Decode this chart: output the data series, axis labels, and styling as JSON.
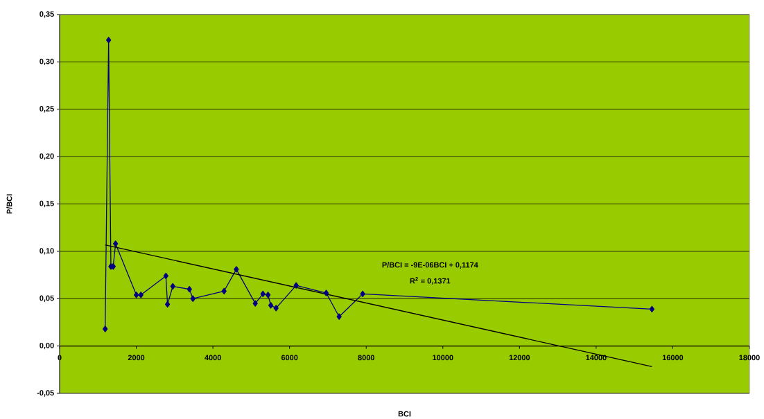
{
  "chart_data": {
    "type": "line",
    "xlabel": "BCI",
    "ylabel": "P/BCI",
    "annotations": [
      "P/BCI = -9E-06BCI + 0,1174",
      "R$^{2}$ = 0,1371"
    ],
    "series": [
      {
        "color": "#000080",
        "marker": "diamond",
        "x": [
          1188,
          1278,
          1338,
          1398,
          1459,
          2002,
          2121,
          2773,
          2815,
          2953,
          3387,
          3478,
          4291,
          4611,
          5105,
          5304,
          5438,
          5510,
          5648,
          6172,
          6956,
          7293,
          7908,
          15456
        ],
        "values": [
          0.018,
          0.323,
          0.084,
          0.084,
          0.108,
          0.054,
          0.054,
          0.074,
          0.044,
          0.063,
          0.06,
          0.05,
          0.058,
          0.081,
          0.045,
          0.055,
          0.054,
          0.043,
          0.04,
          0.064,
          0.056,
          0.031,
          0.055,
          0.039
        ]
      },
      {
        "color": "#000000",
        "marker": "none",
        "x": [
          1188,
          15456
        ],
        "values": [
          0.1067,
          -0.0217
        ]
      }
    ],
    "xlim": [
      0,
      18000
    ],
    "ylim": [
      -0.05,
      0.35
    ],
    "xticks": [
      0,
      2000,
      4000,
      6000,
      8000,
      10000,
      12000,
      14000,
      16000,
      18000
    ],
    "yticks": [
      {
        "value": -0.05,
        "label": "-0,05"
      },
      {
        "value": 0,
        "label": "0,00"
      },
      {
        "value": 0.05,
        "label": "0,05"
      },
      {
        "value": 0.1,
        "label": "0,10"
      },
      {
        "value": 0.15,
        "label": "0,15"
      },
      {
        "value": 0.2,
        "label": "0,20"
      },
      {
        "value": 0.25,
        "label": "0,25"
      },
      {
        "value": 0.3,
        "label": "0,30"
      },
      {
        "value": 0.35,
        "label": "0,35"
      }
    ],
    "grid": "y",
    "line_style": "solid"
  }
}
